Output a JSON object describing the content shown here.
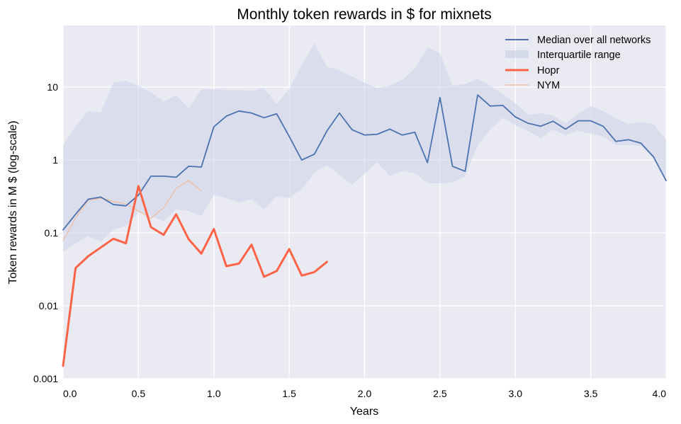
{
  "chart_data": {
    "type": "line",
    "title": "Monthly token rewards in $ for mixnets",
    "xlabel": "Years",
    "ylabel": "Token rewards in M $ (log-scale)",
    "xlim": [
      0,
      4.0
    ],
    "ylim": [
      0.001,
      70
    ],
    "yscale": "log",
    "grid": true,
    "legend_position": "top-right",
    "x_ticks": [
      0.0,
      0.5,
      1.0,
      1.5,
      2.0,
      2.5,
      3.0,
      3.5,
      4.0
    ],
    "x_tick_labels": [
      "0.0",
      "0.5",
      "1.0",
      "1.5",
      "2.0",
      "2.5",
      "3.0",
      "3.5",
      "4.0"
    ],
    "y_ticks": [
      0.001,
      0.01,
      0.1,
      1,
      10
    ],
    "y_tick_labels": [
      "0.001",
      "0.01",
      "0.1",
      "1",
      "10"
    ],
    "background_color": "#eaeaf2",
    "series": [
      {
        "name": "Median over all networks",
        "kind": "line",
        "color": "#4c72b0",
        "x": [
          0,
          0.083,
          0.167,
          0.25,
          0.333,
          0.417,
          0.5,
          0.583,
          0.667,
          0.75,
          0.833,
          0.917,
          1.0,
          1.083,
          1.167,
          1.25,
          1.333,
          1.417,
          1.5,
          1.583,
          1.667,
          1.75,
          1.833,
          1.917,
          2.0,
          2.083,
          2.167,
          2.25,
          2.333,
          2.417,
          2.5,
          2.583,
          2.667,
          2.75,
          2.833,
          2.917,
          3.0,
          3.083,
          3.167,
          3.25,
          3.333,
          3.417,
          3.5,
          3.583,
          3.667,
          3.75,
          3.833,
          3.917,
          4.0
        ],
        "values": [
          0.11,
          0.18,
          0.29,
          0.31,
          0.245,
          0.235,
          0.33,
          0.6,
          0.6,
          0.58,
          0.82,
          0.8,
          2.85,
          4.0,
          4.7,
          4.4,
          3.8,
          4.3,
          2.1,
          1.0,
          1.2,
          2.5,
          4.4,
          2.6,
          2.2,
          2.25,
          2.65,
          2.2,
          2.4,
          0.92,
          7.2,
          0.82,
          0.7,
          7.8,
          5.5,
          5.6,
          3.9,
          3.2,
          2.9,
          3.4,
          2.65,
          3.45,
          3.45,
          2.9,
          1.8,
          1.9,
          1.7,
          1.1,
          0.52
        ]
      },
      {
        "name": "Interquartile range",
        "kind": "band",
        "color": "#ccd3e8",
        "x": [
          0,
          0.083,
          0.167,
          0.25,
          0.333,
          0.417,
          0.5,
          0.583,
          0.667,
          0.75,
          0.833,
          0.917,
          1.0,
          1.083,
          1.167,
          1.25,
          1.333,
          1.417,
          1.5,
          1.583,
          1.667,
          1.75,
          1.833,
          1.917,
          2.0,
          2.083,
          2.167,
          2.25,
          2.333,
          2.417,
          2.5,
          2.583,
          2.667,
          2.75,
          2.833,
          2.917,
          3.0,
          3.083,
          3.167,
          3.25,
          3.333,
          3.417,
          3.5,
          3.583,
          3.667,
          3.75,
          3.833,
          3.917,
          4.0
        ],
        "upper": [
          1.6,
          2.9,
          4.7,
          4.5,
          11.5,
          12.3,
          10.5,
          8.5,
          6.3,
          7.8,
          5.1,
          9.3,
          9.3,
          9.2,
          9.2,
          8.8,
          9.8,
          5.8,
          9.5,
          20.0,
          40.0,
          19.0,
          17.0,
          14.0,
          11.5,
          9.8,
          10.5,
          12.5,
          18.0,
          35.0,
          29.0,
          10.5,
          11.0,
          13.0,
          10.5,
          8.0,
          6.0,
          4.2,
          4.4,
          4.1,
          3.2,
          4.3,
          5.5,
          4.7,
          3.7,
          3.1,
          3.3,
          3.1,
          1.9
        ],
        "lower": [
          0.055,
          0.072,
          0.09,
          0.075,
          0.11,
          0.125,
          0.19,
          0.17,
          0.145,
          0.21,
          0.2,
          0.17,
          0.33,
          0.3,
          0.26,
          0.29,
          0.21,
          0.32,
          0.3,
          0.4,
          0.67,
          0.85,
          0.62,
          0.46,
          0.65,
          0.93,
          0.6,
          0.71,
          0.66,
          0.48,
          0.48,
          0.49,
          0.6,
          1.6,
          2.6,
          3.8,
          3.0,
          2.5,
          2.0,
          2.6,
          2.2,
          2.5,
          2.3,
          2.1,
          1.6,
          1.6,
          1.55,
          1.05,
          0.5
        ]
      },
      {
        "name": "Hopr",
        "kind": "line",
        "color": "#fd6447",
        "x": [
          0,
          0.083,
          0.167,
          0.25,
          0.333,
          0.417,
          0.5,
          0.583,
          0.667,
          0.75,
          0.833,
          0.917,
          1.0,
          1.083,
          1.167,
          1.25,
          1.333,
          1.417,
          1.5,
          1.583,
          1.667,
          1.75
        ],
        "values": [
          0.0015,
          0.033,
          0.048,
          0.063,
          0.083,
          0.072,
          0.44,
          0.12,
          0.094,
          0.18,
          0.082,
          0.052,
          0.113,
          0.035,
          0.038,
          0.069,
          0.025,
          0.03,
          0.06,
          0.026,
          0.029,
          0.04
        ]
      },
      {
        "name": "NYM",
        "kind": "line",
        "color": "#f1bb9e",
        "x": [
          0,
          0.083,
          0.167,
          0.25,
          0.333,
          0.417,
          0.5,
          0.583,
          0.667,
          0.75,
          0.833,
          0.917
        ],
        "values": [
          0.078,
          0.16,
          0.28,
          0.3,
          0.27,
          0.25,
          0.2,
          0.16,
          0.22,
          0.41,
          0.52,
          0.38
        ]
      }
    ]
  }
}
